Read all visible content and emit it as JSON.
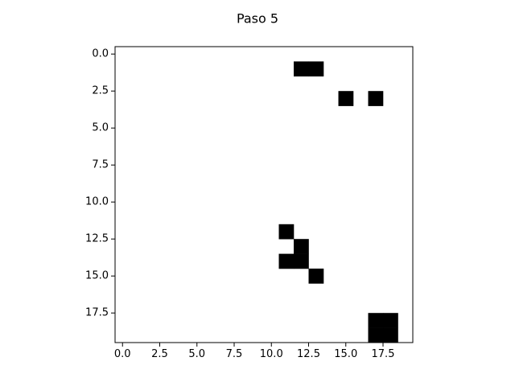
{
  "chart_data": {
    "type": "heatmap",
    "title": "Paso 5",
    "grid_size": [
      20,
      20
    ],
    "colormap": "binary",
    "colors": {
      "on": "#000000",
      "off": "#ffffff",
      "axis": "#000000"
    },
    "xlim": [
      -0.5,
      19.5
    ],
    "ylim": [
      19.5,
      -0.5
    ],
    "x_ticks": [
      0.0,
      2.5,
      5.0,
      7.5,
      10.0,
      12.5,
      15.0,
      17.5
    ],
    "x_tick_labels": [
      "0.0",
      "2.5",
      "5.0",
      "7.5",
      "10.0",
      "12.5",
      "15.0",
      "17.5"
    ],
    "y_ticks": [
      0.0,
      2.5,
      5.0,
      7.5,
      10.0,
      12.5,
      15.0,
      17.5
    ],
    "y_tick_labels": [
      "0.0",
      "2.5",
      "5.0",
      "7.5",
      "10.0",
      "12.5",
      "15.0",
      "17.5"
    ],
    "cells_on": [
      [
        1,
        12
      ],
      [
        1,
        13
      ],
      [
        3,
        15
      ],
      [
        3,
        17
      ],
      [
        12,
        11
      ],
      [
        13,
        12
      ],
      [
        14,
        11
      ],
      [
        14,
        12
      ],
      [
        15,
        13
      ],
      [
        18,
        17
      ],
      [
        18,
        18
      ],
      [
        19,
        17
      ],
      [
        19,
        18
      ]
    ]
  }
}
